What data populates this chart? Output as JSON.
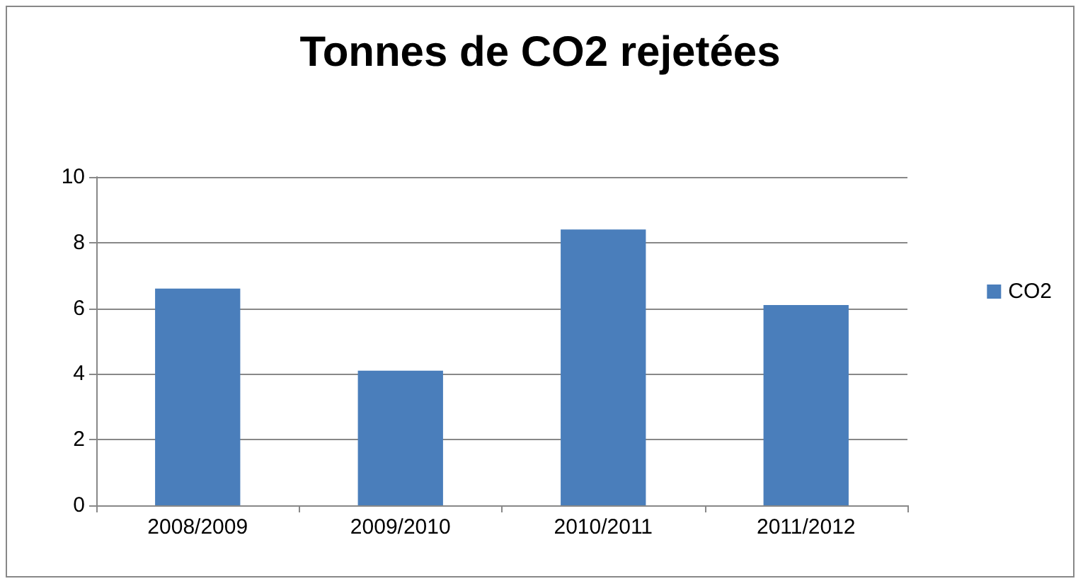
{
  "chart_data": {
    "type": "bar",
    "title": "Tonnes de CO2 rejetées",
    "categories": [
      "2008/2009",
      "2009/2010",
      "2010/2011",
      "2011/2012"
    ],
    "series": [
      {
        "name": "CO2",
        "color": "#4a7ebb",
        "values": [
          6.6,
          4.1,
          8.4,
          6.1
        ]
      }
    ],
    "ylim": [
      0,
      10
    ],
    "yticks": [
      0,
      2,
      4,
      6,
      8,
      10
    ],
    "grid": "y",
    "legend": "right"
  }
}
